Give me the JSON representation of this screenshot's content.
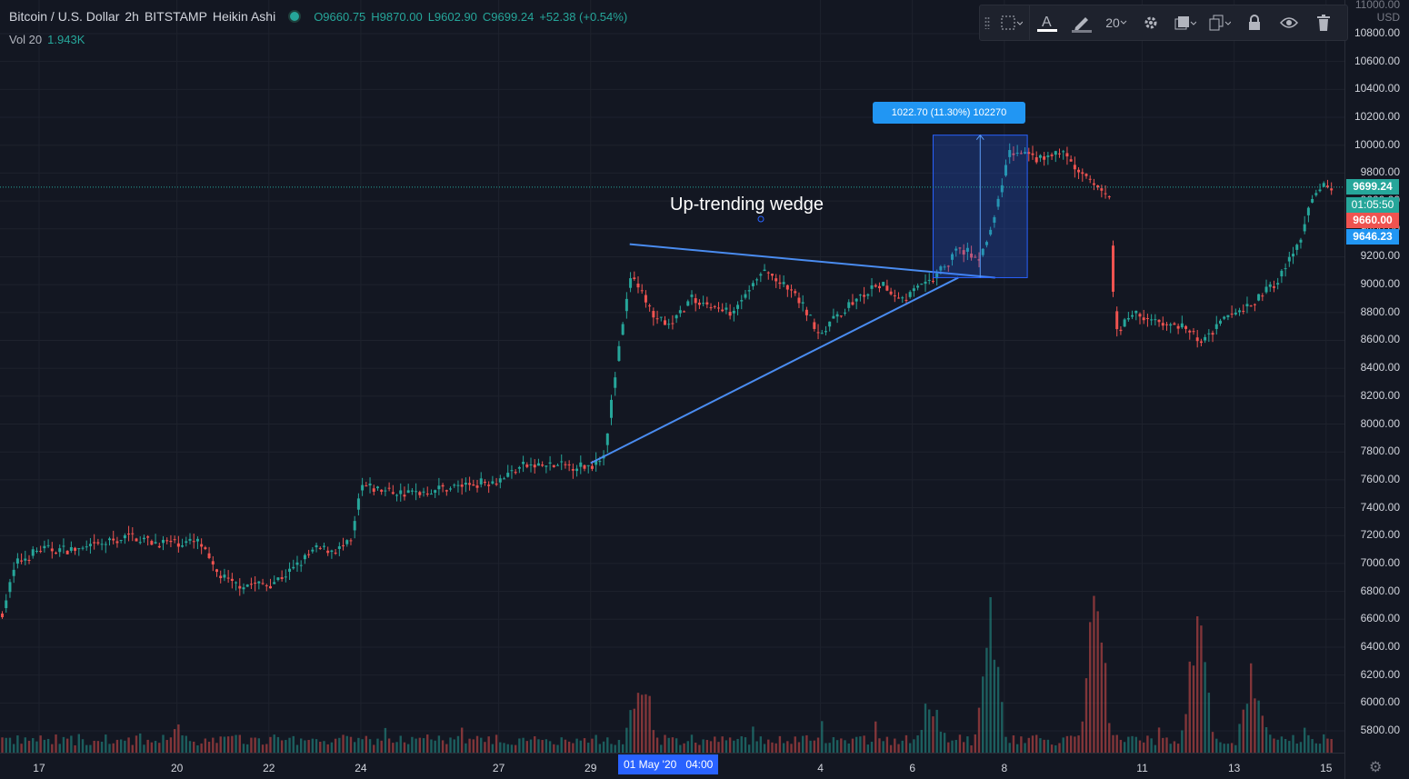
{
  "legend": {
    "symbol": "Bitcoin / U.S. Dollar",
    "interval": "2h",
    "exchange": "BITSTAMP",
    "style": "Heikin Ashi",
    "open": "O9660.75",
    "high": "H9870.00",
    "low": "L9602.90",
    "close": "C9699.24",
    "change": "+52.38 (+0.54%)"
  },
  "volume": {
    "label": "Vol 20",
    "value": "1.943K"
  },
  "toolbar": {
    "size_value": "20"
  },
  "annotation": {
    "text": "Up-trending wedge"
  },
  "measure": {
    "label": "1022.70 (11.30%) 102270"
  },
  "price_tags": {
    "last": "9699.24",
    "countdown": "01:05:50",
    "open": "9660.00",
    "prev": "9646.23"
  },
  "axis": {
    "currency": "USD",
    "top_label": "11000.00",
    "crosshair_x": "01 May '20   04:00"
  },
  "colors": {
    "up": "#26a69a",
    "down": "#ef5350",
    "line": "#2962ff",
    "bg": "#131722",
    "grid": "#1e222d"
  },
  "chart_data": {
    "type": "candlestick",
    "title": "Bitcoin / U.S. Dollar · 2h · BITSTAMP · Heikin Ashi",
    "ylabel": "USD",
    "ylim": [
      5600,
      11000
    ],
    "y_ticks": [
      "10800.00",
      "10600.00",
      "10400.00",
      "10200.00",
      "10000.00",
      "9800.00",
      "9600.00",
      "9400.00",
      "9200.00",
      "9000.00",
      "8800.00",
      "8600.00",
      "8400.00",
      "8200.00",
      "8000.00",
      "7800.00",
      "7600.00",
      "7400.00",
      "7200.00",
      "7000.00",
      "6800.00",
      "6600.00",
      "6400.00",
      "6200.00",
      "6000.00",
      "5800.00"
    ],
    "x_ticks": [
      "17",
      "20",
      "22",
      "24",
      "27",
      "29",
      "4",
      "6",
      "8",
      "11",
      "13",
      "15"
    ],
    "x_tick_days": [
      17,
      20,
      22,
      24,
      27,
      29,
      34,
      36,
      38,
      41,
      43,
      45
    ],
    "xlim_days": [
      16.15,
      45.4
    ],
    "price_path": [
      [
        16.2,
        6650
      ],
      [
        16.5,
        7000
      ],
      [
        17.0,
        7100
      ],
      [
        18.0,
        7100
      ],
      [
        19.0,
        7200
      ],
      [
        19.5,
        7150
      ],
      [
        20.0,
        7150
      ],
      [
        20.5,
        7150
      ],
      [
        20.8,
        6950
      ],
      [
        21.2,
        6850
      ],
      [
        22.0,
        6850
      ],
      [
        22.5,
        6950
      ],
      [
        23.0,
        7100
      ],
      [
        23.5,
        7100
      ],
      [
        23.8,
        7150
      ],
      [
        24.0,
        7550
      ],
      [
        25.0,
        7500
      ],
      [
        26.0,
        7550
      ],
      [
        27.0,
        7600
      ],
      [
        27.5,
        7700
      ],
      [
        28.0,
        7700
      ],
      [
        29.0,
        7700
      ],
      [
        29.3,
        7800
      ],
      [
        29.6,
        8500
      ],
      [
        29.9,
        9100
      ],
      [
        30.3,
        8800
      ],
      [
        30.7,
        8700
      ],
      [
        31.2,
        8900
      ],
      [
        32.0,
        8800
      ],
      [
        32.8,
        9100
      ],
      [
        33.5,
        8900
      ],
      [
        34.0,
        8650
      ],
      [
        34.6,
        8850
      ],
      [
        35.3,
        9000
      ],
      [
        35.8,
        8900
      ],
      [
        36.5,
        9050
      ],
      [
        37.0,
        9250
      ],
      [
        37.5,
        9200
      ],
      [
        37.8,
        9500
      ],
      [
        38.1,
        9950
      ],
      [
        38.8,
        9900
      ],
      [
        39.3,
        9950
      ],
      [
        39.6,
        9800
      ],
      [
        40.0,
        9700
      ],
      [
        40.3,
        9600
      ],
      [
        40.4,
        8650
      ],
      [
        40.8,
        8800
      ],
      [
        41.5,
        8700
      ],
      [
        41.9,
        8700
      ],
      [
        42.3,
        8600
      ],
      [
        42.8,
        8750
      ],
      [
        43.5,
        8900
      ],
      [
        44.0,
        9050
      ],
      [
        44.4,
        9300
      ],
      [
        44.6,
        9500
      ],
      [
        44.8,
        9700
      ],
      [
        45.2,
        9700
      ]
    ],
    "volume_spikes": [
      [
        30.1,
        550
      ],
      [
        36.4,
        280
      ],
      [
        37.7,
        800
      ],
      [
        40.0,
        1100
      ],
      [
        42.2,
        900
      ],
      [
        43.4,
        470
      ]
    ],
    "wedge": {
      "upper_line": [
        [
          29.85,
          9290
        ],
        [
          37.8,
          9050
        ]
      ],
      "lower_line": [
        [
          29.0,
          7720
        ],
        [
          37.0,
          9050
        ]
      ]
    },
    "measure_box": {
      "x": [
        36.45,
        38.5
      ],
      "y": [
        9050,
        10072
      ]
    },
    "last_price": 9699.24
  }
}
